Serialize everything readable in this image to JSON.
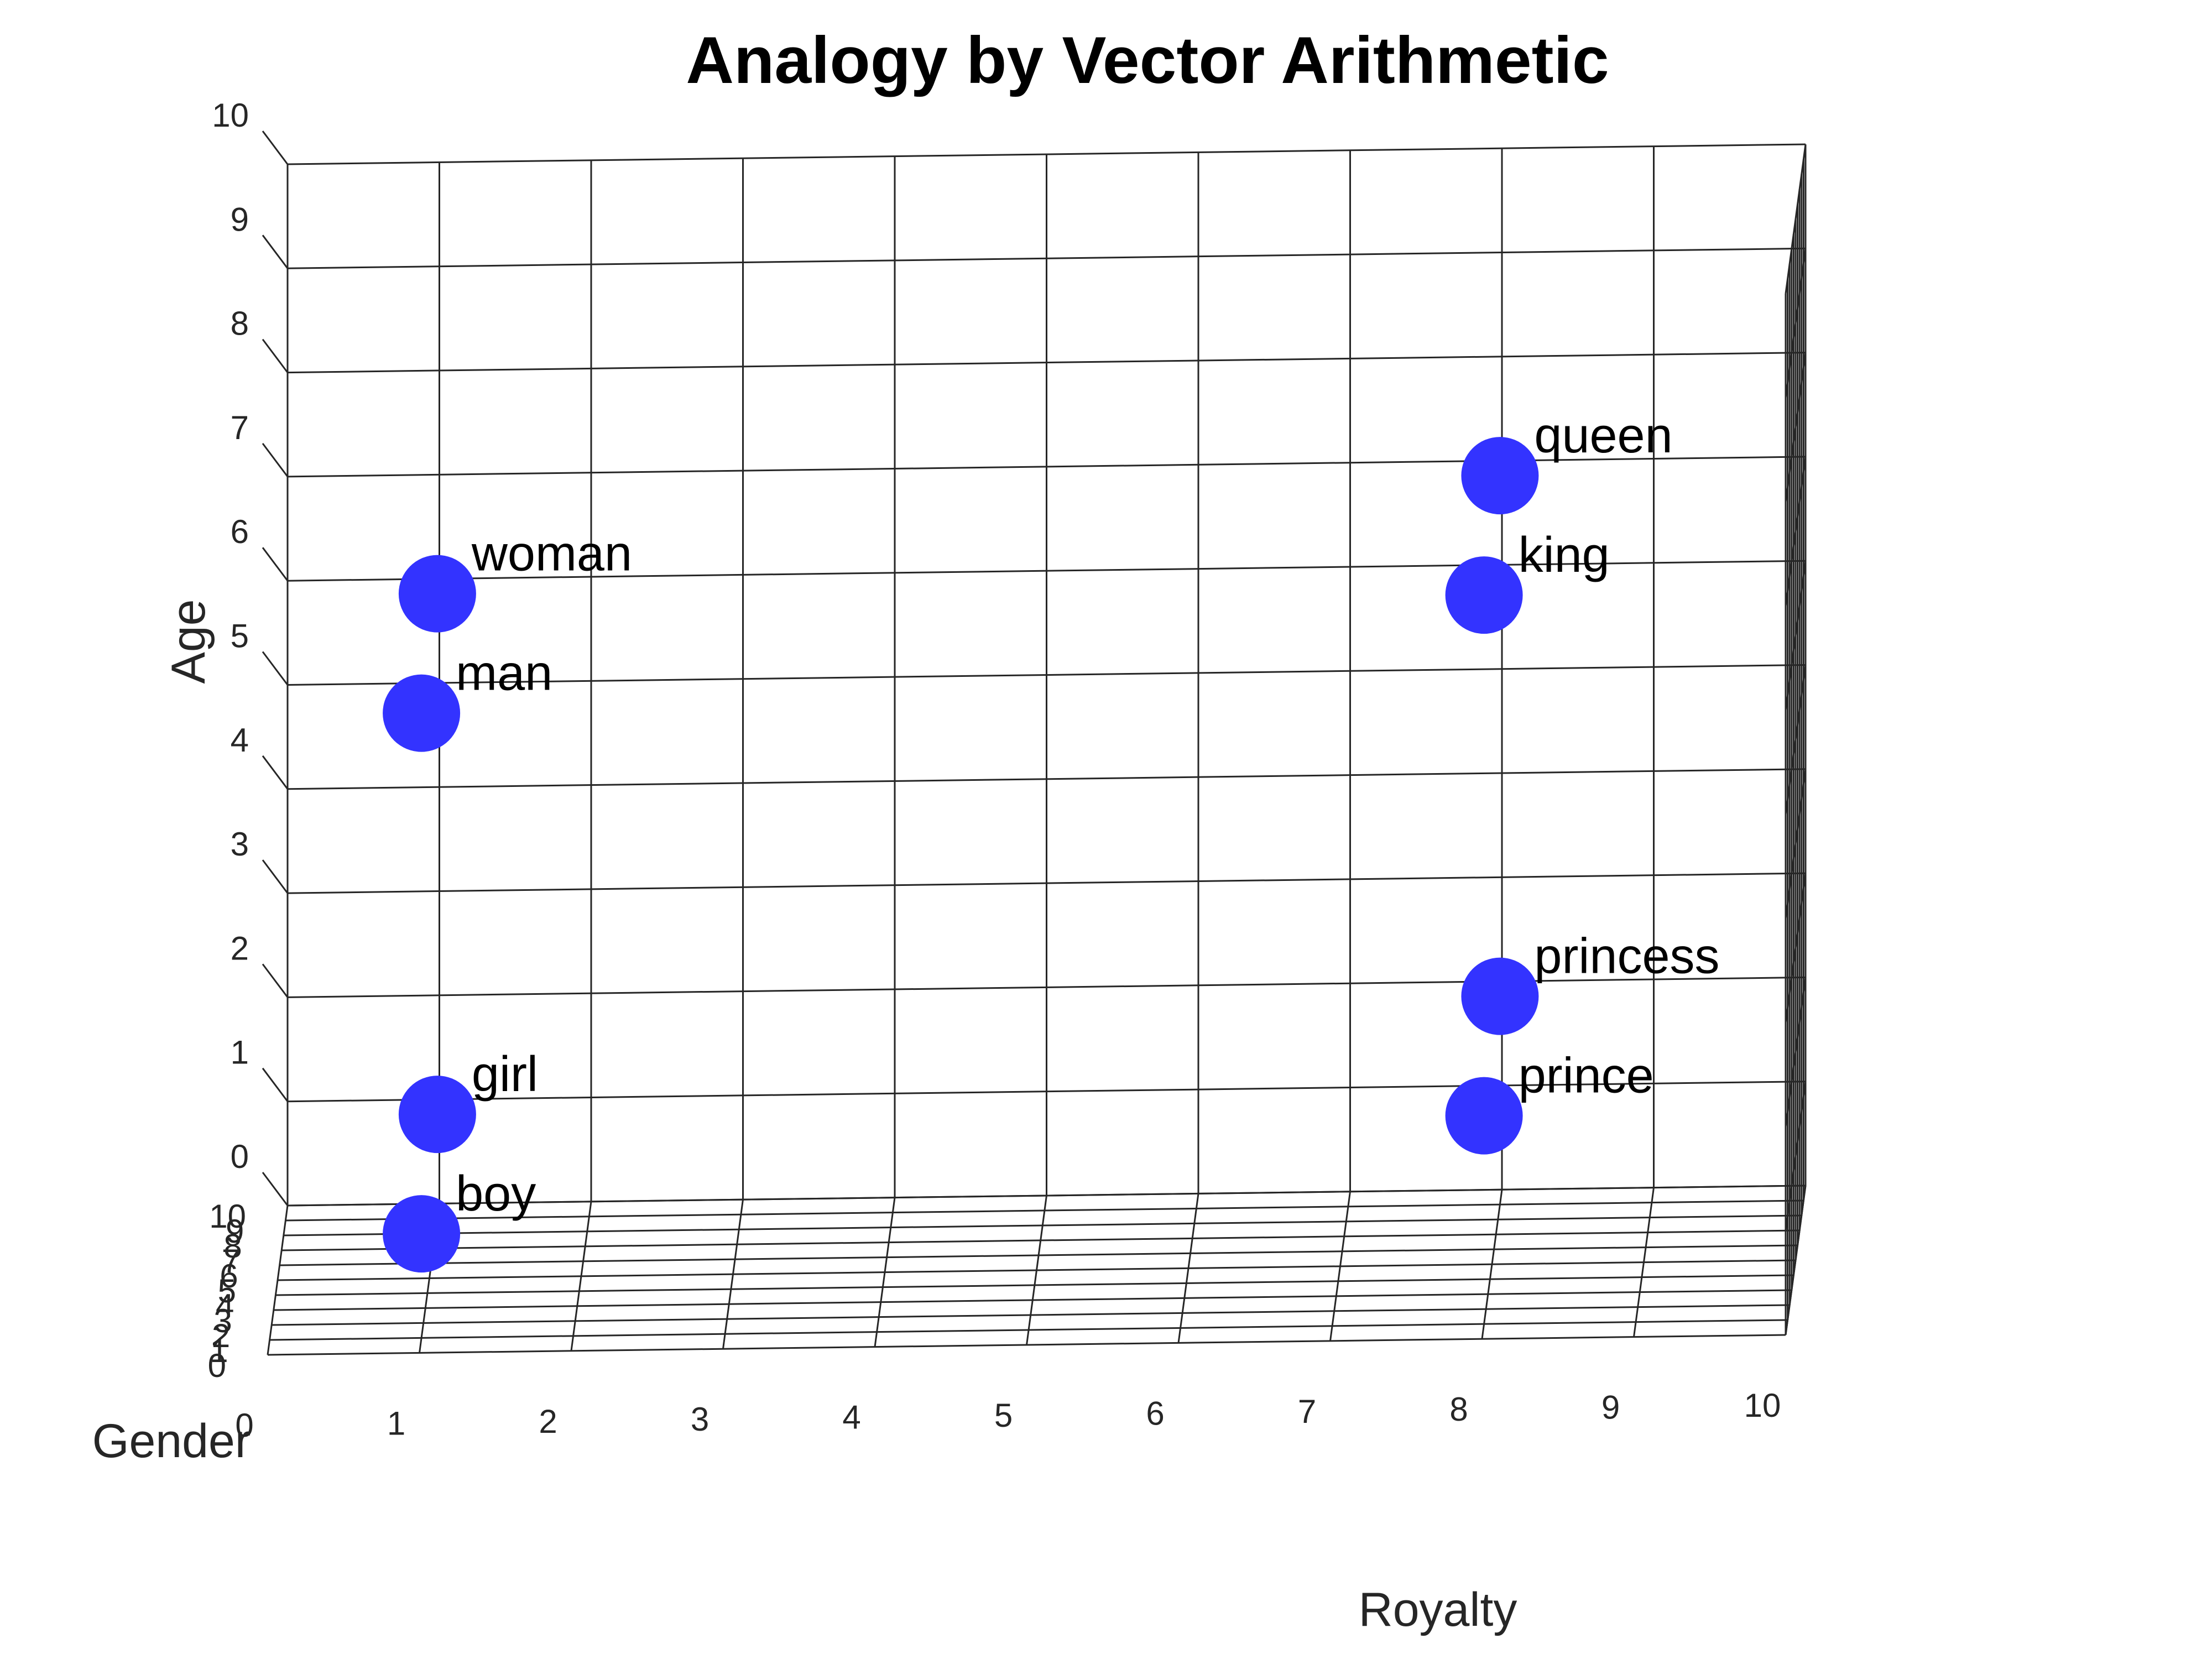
{
  "chart_data": {
    "type": "scatter3d",
    "title": "Analogy by Vector Arithmetic",
    "xlabel": "Royalty",
    "ylabel": "Gender",
    "zlabel": "Age",
    "xlim": [
      0,
      10
    ],
    "ylim": [
      0,
      10
    ],
    "zlim": [
      0,
      10
    ],
    "xticks": [
      "0",
      "1",
      "2",
      "3",
      "4",
      "5",
      "6",
      "7",
      "8",
      "9",
      "10"
    ],
    "yticks": [
      "0",
      "1",
      "2",
      "3",
      "4",
      "5",
      "6",
      "7",
      "8",
      "9",
      "10"
    ],
    "zticks": [
      "0",
      "1",
      "2",
      "3",
      "4",
      "5",
      "6",
      "7",
      "8",
      "9",
      "10"
    ],
    "grid": true,
    "marker_color": "#3333ff",
    "points": [
      {
        "label": "woman",
        "x": 1,
        "y": 9,
        "z": 6
      },
      {
        "label": "man",
        "x": 1,
        "y": 1,
        "z": 6
      },
      {
        "label": "girl",
        "x": 1,
        "y": 9,
        "z": 1
      },
      {
        "label": "boy",
        "x": 1,
        "y": 1,
        "z": 1
      },
      {
        "label": "queen",
        "x": 8,
        "y": 9,
        "z": 7
      },
      {
        "label": "king",
        "x": 8,
        "y": 1,
        "z": 7
      },
      {
        "label": "princess",
        "x": 8,
        "y": 9,
        "z": 2
      },
      {
        "label": "prince",
        "x": 8,
        "y": 1,
        "z": 2
      }
    ]
  }
}
